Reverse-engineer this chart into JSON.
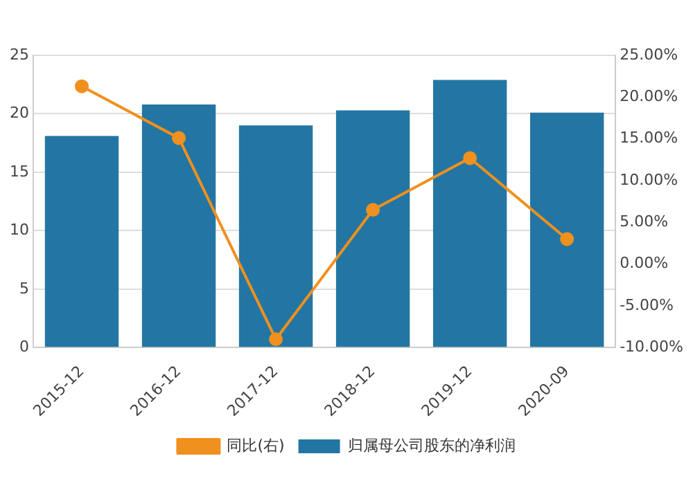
{
  "chart_data": {
    "type": "bar",
    "categories": [
      "2015-12",
      "2016-12",
      "2017-12",
      "2018-12",
      "2019-12",
      "2020-09"
    ],
    "series": [
      {
        "name": "归属母公司股东的净利润",
        "color": "#2376a3",
        "values": [
          18.1,
          20.8,
          19.0,
          20.3,
          22.9,
          20.1
        ]
      },
      {
        "name": "同比(右)",
        "type": "line",
        "axis": "y2",
        "color": "#f0901e",
        "marker": "circle",
        "values": [
          21.3,
          15.1,
          -9.0,
          6.5,
          12.7,
          3.0
        ]
      }
    ],
    "ylim": [
      0,
      25
    ],
    "yticks": [
      0,
      5,
      10,
      15,
      20,
      25
    ],
    "y2lim": [
      -10,
      25
    ],
    "y2ticks": [
      {
        "value": -10,
        "label": "-10.00%"
      },
      {
        "value": -5,
        "label": "-5.00%"
      },
      {
        "value": 0,
        "label": "0.00%"
      },
      {
        "value": 5,
        "label": "5.00%"
      },
      {
        "value": 10,
        "label": "10.00%"
      },
      {
        "value": 15,
        "label": "15.00%"
      },
      {
        "value": 20,
        "label": "20.00%"
      },
      {
        "value": 25,
        "label": "25.00%"
      }
    ],
    "grid": "y",
    "legend": "bottom"
  }
}
